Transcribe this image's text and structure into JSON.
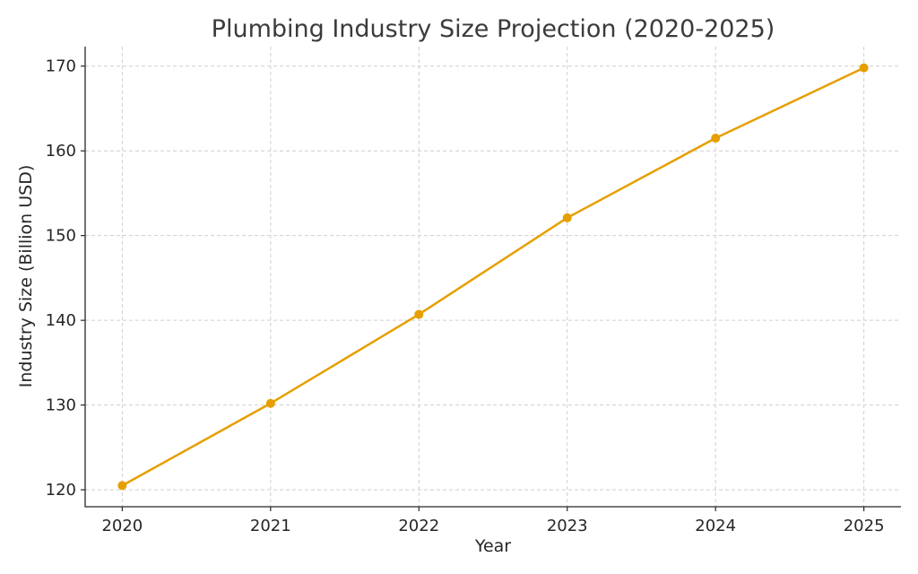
{
  "chart_data": {
    "type": "line",
    "title": "Plumbing Industry Size Projection (2020-2025)",
    "xlabel": "Year",
    "ylabel": "Industry Size (Billion USD)",
    "x": [
      "2020",
      "2021",
      "2022",
      "2023",
      "2024",
      "2025"
    ],
    "series": [
      {
        "values": [
          120.5,
          130.2,
          140.7,
          152.1,
          161.5,
          169.8
        ],
        "color": "#e69f00"
      }
    ],
    "xlim": [
      2019.75,
      2025.25
    ],
    "ylim": [
      118,
      172.3
    ],
    "yticks": [
      120,
      130,
      140,
      150,
      160,
      170
    ],
    "grid": true,
    "legend": "none"
  }
}
